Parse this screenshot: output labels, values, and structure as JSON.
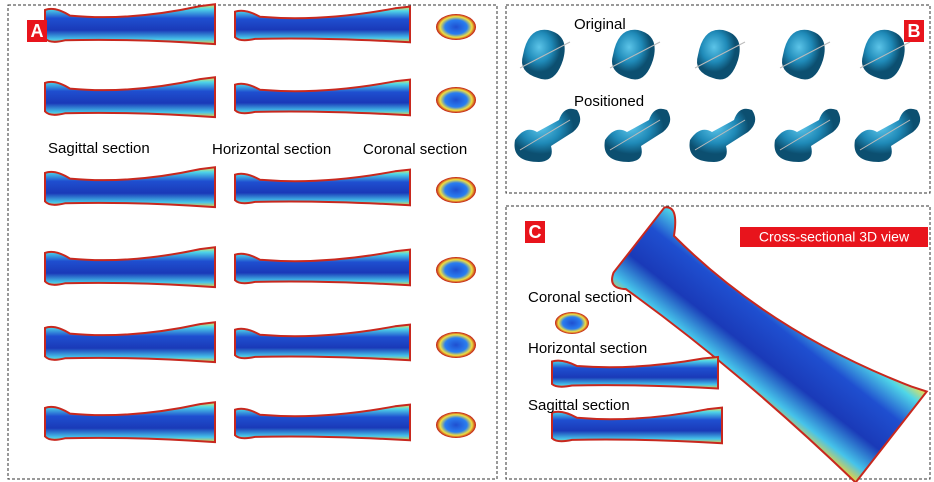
{
  "panels": [
    {
      "label": "A",
      "texts": [
        "Sagittal section",
        "Horizontal section",
        "Coronal section"
      ]
    },
    {
      "label": "B",
      "texts": [
        "Original",
        "Positioned"
      ]
    },
    {
      "label": "C",
      "title": "Cross-sectional 3D view",
      "texts": [
        "Coronal section",
        "Horizontal section",
        "Sagittal section"
      ]
    }
  ]
}
